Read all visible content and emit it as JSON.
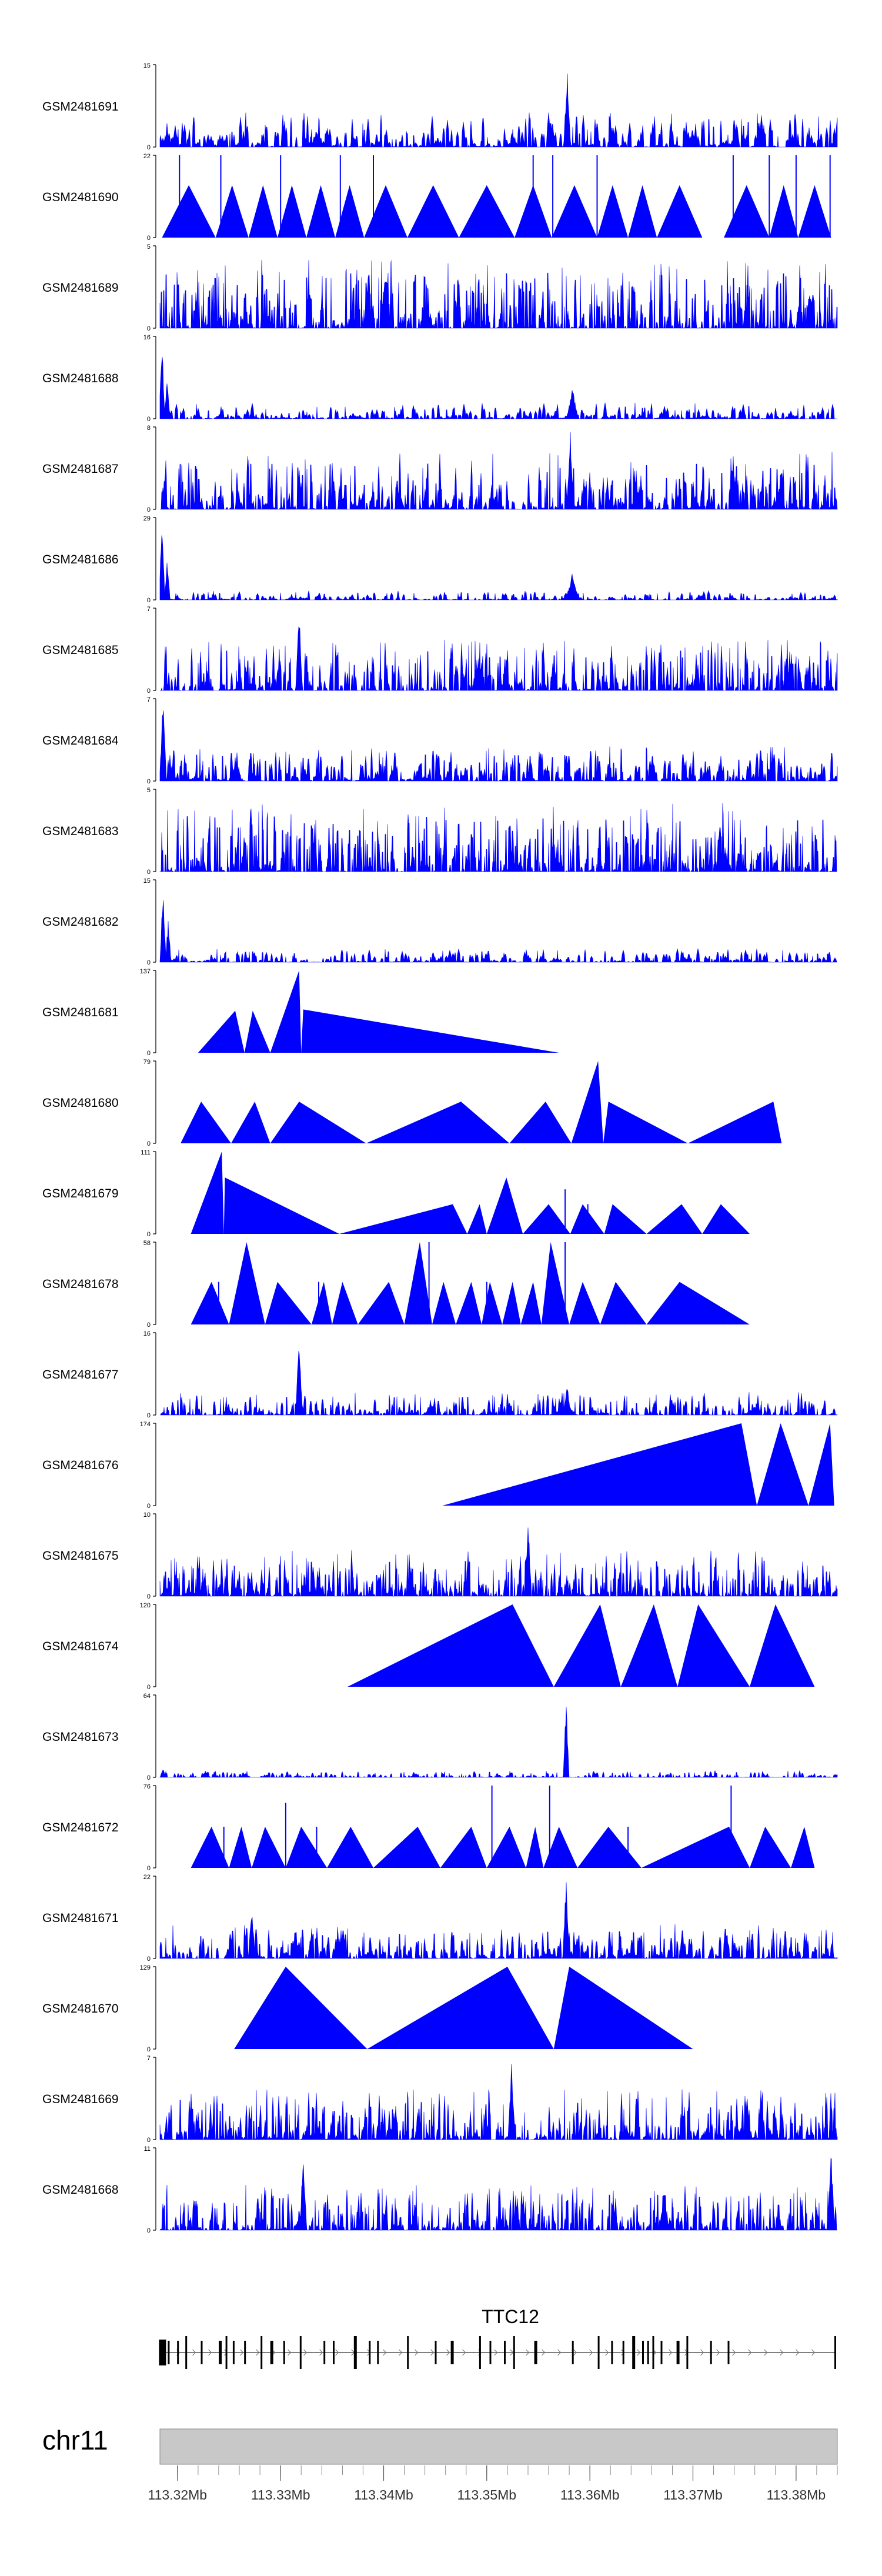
{
  "chart_data": {
    "type": "area",
    "color": "#0000ff",
    "gene": {
      "name": "TTC12",
      "strand": "+",
      "start": 113.3185,
      "end": 113.3838,
      "exons": [
        113.31855,
        113.31915,
        113.32005,
        113.32085,
        113.32235,
        113.32415,
        113.32475,
        113.32545,
        113.32655,
        113.32815,
        113.32915,
        113.33035,
        113.33195,
        113.33425,
        113.33515,
        113.33725,
        113.33865,
        113.33945,
        113.34235,
        113.34505,
        113.34665,
        113.34935,
        113.35035,
        113.35175,
        113.35265,
        113.35475,
        113.35835,
        113.36085,
        113.36215,
        113.36325,
        113.36425,
        113.36515,
        113.36565,
        113.36615,
        113.36695,
        113.36855,
        113.36945,
        113.37175,
        113.37345,
        113.3838
      ]
    },
    "ideogram": {
      "chromosome": "chr11",
      "x_ticks": [
        113.32,
        113.33,
        113.34,
        113.35,
        113.36,
        113.37,
        113.38
      ],
      "x_tick_labels": [
        "113.32Mb",
        "113.33Mb",
        "113.34Mb",
        "113.35Mb",
        "113.36Mb",
        "113.37Mb",
        "113.38Mb"
      ]
    },
    "xlim": [
      113.3183,
      113.384
    ],
    "tracks": [
      {
        "name": "GSM2481691",
        "ymax": 15,
        "style": "noise",
        "base": 0.15,
        "density": 0.95,
        "width": 5,
        "seed": 11,
        "peaks": [
          [
            113.3578,
            15,
            0.3
          ],
          [
            113.3742,
            5,
            0.3
          ]
        ]
      },
      {
        "name": "GSM2481690",
        "ymax": 22,
        "style": "tri",
        "tri": [
          [
            113.3185,
            113.3211,
            113.3237,
            14
          ],
          [
            113.3237,
            113.3253,
            113.3269,
            14
          ],
          [
            113.3269,
            113.3283,
            113.3297,
            14
          ],
          [
            113.3297,
            113.3311,
            113.3325,
            14
          ],
          [
            113.3325,
            113.3339,
            113.3353,
            14
          ],
          [
            113.3353,
            113.3367,
            113.3381,
            14
          ],
          [
            113.3381,
            113.3402,
            113.3423,
            14
          ],
          [
            113.3423,
            113.3448,
            113.3473,
            14
          ],
          [
            113.3473,
            113.35,
            113.3527,
            14
          ],
          [
            113.3527,
            113.3545,
            113.3563,
            14
          ],
          [
            113.3563,
            113.3585,
            113.3607,
            14
          ],
          [
            113.3607,
            113.3622,
            113.3637,
            14
          ],
          [
            113.3637,
            113.3651,
            113.3665,
            14
          ],
          [
            113.3665,
            113.3687,
            113.3709,
            14
          ],
          [
            113.373,
            113.3752,
            113.3774,
            14
          ],
          [
            113.3774,
            113.3788,
            113.3802,
            14
          ],
          [
            113.3802,
            113.3818,
            113.3834,
            14
          ]
        ],
        "spikes": [
          [
            113.3202,
            22
          ],
          [
            113.3242,
            22
          ],
          [
            113.33,
            22
          ],
          [
            113.3358,
            22
          ],
          [
            113.339,
            22
          ],
          [
            113.3545,
            22
          ],
          [
            113.3564,
            22
          ],
          [
            113.3607,
            22
          ],
          [
            113.3739,
            22
          ],
          [
            113.3774,
            22
          ],
          [
            113.38,
            22
          ],
          [
            113.3833,
            22
          ]
        ]
      },
      {
        "name": "GSM2481689",
        "ymax": 5,
        "style": "noise",
        "base": 0.3,
        "density": 0.9,
        "width": 2,
        "seed": 23,
        "peaks": []
      },
      {
        "name": "GSM2481688",
        "ymax": 16,
        "style": "noise",
        "base": 0.07,
        "density": 0.8,
        "width": 5,
        "seed": 31,
        "peaks": [
          [
            113.3185,
            16,
            0.25
          ],
          [
            113.319,
            8,
            0.25
          ],
          [
            113.3583,
            6,
            0.5
          ]
        ]
      },
      {
        "name": "GSM2481687",
        "ymax": 8,
        "style": "noise",
        "base": 0.25,
        "density": 0.9,
        "width": 3,
        "seed": 37,
        "peaks": [
          [
            113.3581,
            8,
            0.3
          ]
        ]
      },
      {
        "name": "GSM2481686",
        "ymax": 29,
        "style": "noise",
        "base": 0.04,
        "density": 0.75,
        "width": 5,
        "seed": 41,
        "peaks": [
          [
            113.3185,
            29,
            0.25
          ],
          [
            113.319,
            15,
            0.25
          ],
          [
            113.3583,
            10,
            0.5
          ]
        ]
      },
      {
        "name": "GSM2481685",
        "ymax": 7,
        "style": "noise",
        "base": 0.22,
        "density": 0.9,
        "width": 3,
        "seed": 43,
        "peaks": [
          [
            113.3318,
            7,
            0.3
          ]
        ]
      },
      {
        "name": "GSM2481684",
        "ymax": 7,
        "style": "noise",
        "base": 0.15,
        "density": 0.95,
        "width": 4,
        "seed": 47,
        "peaks": [
          [
            113.3186,
            7,
            0.3
          ]
        ]
      },
      {
        "name": "GSM2481683",
        "ymax": 5,
        "style": "noise",
        "base": 0.3,
        "density": 0.9,
        "width": 2,
        "seed": 53,
        "peaks": []
      },
      {
        "name": "GSM2481682",
        "ymax": 15,
        "style": "noise",
        "base": 0.06,
        "density": 0.8,
        "width": 5,
        "seed": 59,
        "peaks": [
          [
            113.3186,
            15,
            0.25
          ],
          [
            113.3191,
            8,
            0.25
          ]
        ]
      },
      {
        "name": "GSM2481681",
        "ymax": 137,
        "style": "tri",
        "tri": [
          [
            113.322,
            113.3256,
            113.3265,
            70
          ],
          [
            113.3265,
            113.3273,
            113.329,
            70
          ],
          [
            113.329,
            113.3318,
            113.332,
            137
          ],
          [
            113.332,
            113.3322,
            113.357,
            72
          ]
        ],
        "spikes": []
      },
      {
        "name": "GSM2481680",
        "ymax": 79,
        "style": "tri",
        "tri": [
          [
            113.3203,
            113.3223,
            113.3252,
            40
          ],
          [
            113.3252,
            113.3275,
            113.329,
            40
          ],
          [
            113.329,
            113.3318,
            113.3383,
            40
          ],
          [
            113.3383,
            113.3475,
            113.3522,
            40
          ],
          [
            113.3522,
            113.3557,
            113.3582,
            40
          ],
          [
            113.3582,
            113.3608,
            113.3613,
            79
          ],
          [
            113.3613,
            113.3618,
            113.3695,
            40
          ],
          [
            113.3695,
            113.3778,
            113.3786,
            40
          ]
        ],
        "spikes": []
      },
      {
        "name": "GSM2481679",
        "ymax": 111,
        "style": "tri",
        "tri": [
          [
            113.3213,
            113.3243,
            113.3245,
            111
          ],
          [
            113.3245,
            113.3246,
            113.3357,
            76
          ],
          [
            113.3357,
            113.3467,
            113.3481,
            40
          ],
          [
            113.3481,
            113.3493,
            113.35,
            40
          ],
          [
            113.35,
            113.3519,
            113.3535,
            76
          ],
          [
            113.3535,
            113.356,
            113.3581,
            40
          ],
          [
            113.3581,
            113.3593,
            113.3614,
            40
          ],
          [
            113.3614,
            113.3622,
            113.3655,
            40
          ],
          [
            113.3655,
            113.3689,
            113.3709,
            40
          ],
          [
            113.3709,
            113.3727,
            113.3755,
            40
          ]
        ],
        "spikes": [
          [
            113.3576,
            60
          ],
          [
            113.3598,
            40
          ]
        ]
      },
      {
        "name": "GSM2481678",
        "ymax": 58,
        "style": "tri",
        "tri": [
          [
            113.3213,
            113.3233,
            113.325,
            30
          ],
          [
            113.325,
            113.3267,
            113.3285,
            58
          ],
          [
            113.3285,
            113.3297,
            113.333,
            30
          ],
          [
            113.333,
            113.3342,
            113.335,
            30
          ],
          [
            113.335,
            113.336,
            113.3375,
            30
          ],
          [
            113.3375,
            113.3405,
            113.342,
            30
          ],
          [
            113.342,
            113.3435,
            113.3447,
            58
          ],
          [
            113.3447,
            113.3458,
            113.347,
            30
          ],
          [
            113.347,
            113.3485,
            113.3495,
            30
          ],
          [
            113.3495,
            113.3503,
            113.3515,
            30
          ],
          [
            113.3515,
            113.3525,
            113.3533,
            30
          ],
          [
            113.3533,
            113.3545,
            113.3553,
            30
          ],
          [
            113.3553,
            113.3562,
            113.358,
            58
          ],
          [
            113.358,
            113.3593,
            113.361,
            30
          ],
          [
            113.361,
            113.3625,
            113.3655,
            30
          ],
          [
            113.3655,
            113.3687,
            113.3755,
            30
          ]
        ],
        "spikes": [
          [
            113.324,
            30
          ],
          [
            113.3337,
            30
          ],
          [
            113.3444,
            58
          ],
          [
            113.35,
            30
          ],
          [
            113.3576,
            58
          ]
        ]
      },
      {
        "name": "GSM2481677",
        "ymax": 16,
        "style": "noise",
        "base": 0.1,
        "density": 0.9,
        "width": 4,
        "seed": 67,
        "peaks": [
          [
            113.3318,
            16,
            0.3
          ],
          [
            113.3578,
            6,
            0.3
          ]
        ]
      },
      {
        "name": "GSM2481676",
        "ymax": 174,
        "style": "tri",
        "tri": [
          [
            113.3457,
            113.3747,
            113.3762,
            174
          ],
          [
            113.3762,
            113.3785,
            113.3812,
            174
          ],
          [
            113.3812,
            113.3833,
            113.3837,
            174
          ]
        ],
        "spikes": []
      },
      {
        "name": "GSM2481675",
        "ymax": 10,
        "style": "noise",
        "base": 0.2,
        "density": 0.9,
        "width": 3,
        "seed": 71,
        "peaks": [
          [
            113.354,
            10,
            0.3
          ]
        ]
      },
      {
        "name": "GSM2481674",
        "ymax": 120,
        "style": "tri",
        "tri": [
          [
            113.3365,
            113.3525,
            113.3565,
            120
          ],
          [
            113.3565,
            113.361,
            113.363,
            120
          ],
          [
            113.363,
            113.3662,
            113.3685,
            120
          ],
          [
            113.3685,
            113.3705,
            113.3755,
            120
          ],
          [
            113.3755,
            113.378,
            113.3818,
            120
          ]
        ],
        "spikes": []
      },
      {
        "name": "GSM2481673",
        "ymax": 64,
        "style": "noise",
        "base": 0.03,
        "density": 0.7,
        "width": 4,
        "seed": 73,
        "peaks": [
          [
            113.3577,
            64,
            0.25
          ],
          [
            113.3186,
            8,
            0.25
          ]
        ]
      },
      {
        "name": "GSM2481672",
        "ymax": 76,
        "style": "tri",
        "tri": [
          [
            113.3213,
            113.3233,
            113.325,
            38
          ],
          [
            113.325,
            113.3262,
            113.3272,
            38
          ],
          [
            113.3272,
            113.3285,
            113.3305,
            38
          ],
          [
            113.3305,
            113.332,
            113.3345,
            38
          ],
          [
            113.3345,
            113.3368,
            113.339,
            38
          ],
          [
            113.339,
            113.3433,
            113.3455,
            38
          ],
          [
            113.3455,
            113.3485,
            113.35,
            38
          ],
          [
            113.35,
            113.3522,
            113.3538,
            38
          ],
          [
            113.3538,
            113.3547,
            113.3555,
            38
          ],
          [
            113.3555,
            113.357,
            113.3588,
            38
          ],
          [
            113.3588,
            113.3618,
            113.365,
            38
          ],
          [
            113.365,
            113.3735,
            113.3755,
            38
          ],
          [
            113.3755,
            113.377,
            113.3795,
            38
          ],
          [
            113.3795,
            113.3808,
            113.3818,
            38
          ]
        ],
        "spikes": [
          [
            113.3245,
            38
          ],
          [
            113.3305,
            60
          ],
          [
            113.3335,
            38
          ],
          [
            113.3505,
            76
          ],
          [
            113.3561,
            76
          ],
          [
            113.3637,
            38
          ],
          [
            113.3737,
            76
          ]
        ]
      },
      {
        "name": "GSM2481671",
        "ymax": 22,
        "style": "noise",
        "base": 0.15,
        "density": 0.9,
        "width": 4,
        "seed": 79,
        "peaks": [
          [
            113.3577,
            22,
            0.3
          ],
          [
            113.3272,
            14,
            0.3
          ]
        ]
      },
      {
        "name": "GSM2481670",
        "ymax": 129,
        "style": "tri",
        "tri": [
          [
            113.3255,
            113.3305,
            113.3384,
            129
          ],
          [
            113.3384,
            113.352,
            113.3565,
            129
          ],
          [
            113.3565,
            113.358,
            113.37,
            129
          ]
        ],
        "spikes": []
      },
      {
        "name": "GSM2481669",
        "ymax": 7,
        "style": "noise",
        "base": 0.22,
        "density": 0.9,
        "width": 3,
        "seed": 83,
        "peaks": [
          [
            113.3524,
            7,
            0.3
          ]
        ]
      },
      {
        "name": "GSM2481668",
        "ymax": 11,
        "style": "noise",
        "base": 0.2,
        "density": 0.9,
        "width": 3,
        "seed": 89,
        "peaks": [
          [
            113.3322,
            11,
            0.3
          ],
          [
            113.3834,
            11,
            0.3
          ]
        ]
      }
    ]
  }
}
